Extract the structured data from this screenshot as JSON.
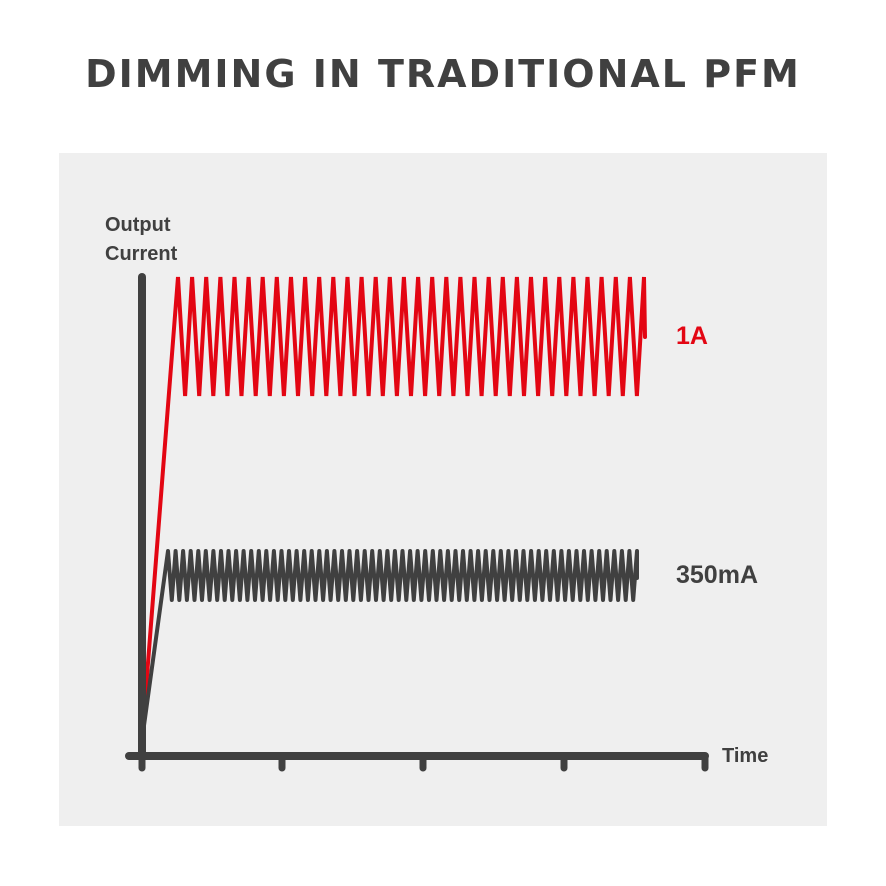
{
  "title": "DIMMING IN TRADITIONAL PFM",
  "colors": {
    "background": "#efefef",
    "axis": "#404040",
    "red": "#e30613",
    "gray": "#404040"
  },
  "diagram": {
    "y_axis_label_line1": "Output",
    "y_axis_label_line2": "Current",
    "x_axis_label": "Time",
    "series": [
      {
        "label": "1A",
        "color": "#e30613",
        "level": 1.0,
        "ripple_cycles": 33
      },
      {
        "label": "350mA",
        "color": "#404040",
        "level": 0.35,
        "ripple_cycles": 62
      }
    ]
  }
}
